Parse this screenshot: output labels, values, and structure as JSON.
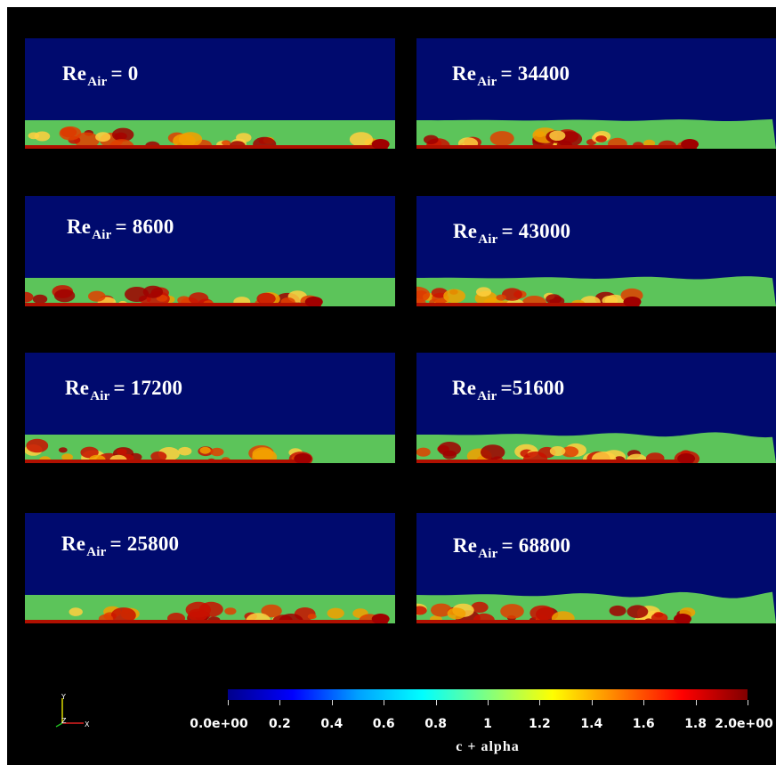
{
  "panels": [
    {
      "prefix": "Re",
      "sub": "Air",
      "value": "= 0"
    },
    {
      "prefix": "Re",
      "sub": "Air",
      "value": "= 34400"
    },
    {
      "prefix": "Re",
      "sub": "Air",
      "value": "= 8600"
    },
    {
      "prefix": "Re",
      "sub": "Air",
      "value": "= 43000"
    },
    {
      "prefix": "Re",
      "sub": "Air",
      "value": "= 17200"
    },
    {
      "prefix": "Re",
      "sub": "Air",
      "value": "=51600"
    },
    {
      "prefix": "Re",
      "sub": "Air",
      "value": "= 25800"
    },
    {
      "prefix": "Re",
      "sub": "Air",
      "value": "= 68800"
    }
  ],
  "colorbar": {
    "title": "c + alpha",
    "ticks": [
      "0.0e+00",
      "0.2",
      "0.4",
      "0.6",
      "0.8",
      "1",
      "1.2",
      "1.4",
      "1.6",
      "1.8",
      "2.0e+00"
    ],
    "range": [
      0,
      2
    ],
    "colors": [
      "#00008c",
      "#0000ff",
      "#00a0ff",
      "#00ffff",
      "#80ff80",
      "#ffff00",
      "#ff8000",
      "#ff0000",
      "#800000"
    ]
  },
  "axes": {
    "y": "Y",
    "z": "Z",
    "x": "X"
  },
  "colors": {
    "air": "#000a6e",
    "water": "#5cc45a",
    "background": "#000000"
  }
}
